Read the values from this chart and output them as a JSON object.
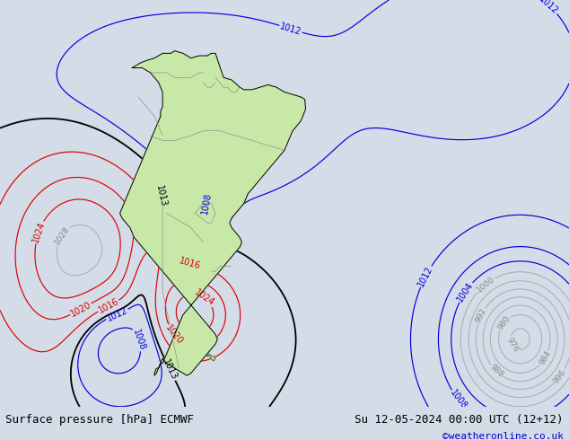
{
  "title_left": "Surface pressure [hPa] ECMWF",
  "title_right": "Su 12-05-2024 00:00 UTC (12+12)",
  "copyright": "©weatheronline.co.uk",
  "bg_color": "#d4dce8",
  "land_color": "#c8e8a8",
  "font_size_title": 9,
  "font_size_copyright": 8,
  "xlim": [
    -110,
    30
  ],
  "ylim": [
    -62,
    22
  ]
}
